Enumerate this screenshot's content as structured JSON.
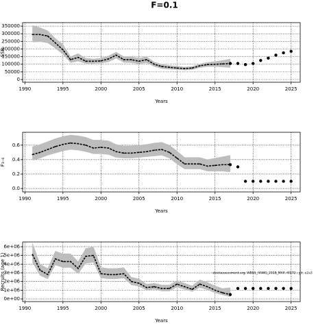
{
  "title": "F=0.1",
  "chart_data": [
    {
      "type": "line",
      "ylabel": "SSB",
      "xlabel": "Years",
      "x": [
        1991,
        1992,
        1993,
        1994,
        1995,
        1996,
        1997,
        1998,
        1999,
        2000,
        2001,
        2002,
        2003,
        2004,
        2005,
        2006,
        2007,
        2008,
        2009,
        2010,
        2011,
        2012,
        2013,
        2014,
        2015,
        2016,
        2017
      ],
      "values": [
        295000,
        295000,
        285000,
        240000,
        195000,
        130000,
        145000,
        120000,
        120000,
        122000,
        135000,
        160000,
        130000,
        130000,
        120000,
        130000,
        100000,
        85000,
        80000,
        75000,
        72000,
        75000,
        90000,
        98000,
        100000,
        102000,
        105000
      ],
      "upper": [
        355000,
        340000,
        320000,
        270000,
        230000,
        150000,
        170000,
        140000,
        135000,
        140000,
        155000,
        180000,
        150000,
        150000,
        140000,
        150000,
        115000,
        100000,
        92000,
        88000,
        82000,
        86000,
        102000,
        112000,
        118000,
        125000,
        135000
      ],
      "lower": [
        245000,
        248000,
        240000,
        205000,
        165000,
        110000,
        120000,
        105000,
        105000,
        108000,
        115000,
        140000,
        112000,
        110000,
        103000,
        110000,
        85000,
        72000,
        68000,
        65000,
        62000,
        65000,
        78000,
        85000,
        85000,
        82000,
        78000
      ],
      "projection_x": [
        2018,
        2019,
        2020,
        2021,
        2022,
        2023,
        2024,
        2025
      ],
      "projection_values": [
        105000,
        98000,
        105000,
        125000,
        140000,
        160000,
        175000,
        185000
      ],
      "xlim": [
        1989.7,
        2026.2
      ],
      "xticks": [
        1990,
        1995,
        2000,
        2005,
        2010,
        2015,
        2020,
        2025
      ],
      "ylim": [
        -18000,
        373000
      ],
      "yticks": [
        0,
        50000,
        100000,
        150000,
        200000,
        250000,
        300000,
        350000
      ],
      "grid": true,
      "color": "#000000",
      "band_color": "#bdbdbd"
    },
    {
      "type": "line",
      "ylabel": "F₃₋₆",
      "xlabel": "Years",
      "x": [
        1991,
        1992,
        1993,
        1994,
        1995,
        1996,
        1997,
        1998,
        1999,
        2000,
        2001,
        2002,
        2003,
        2004,
        2005,
        2006,
        2007,
        2008,
        2009,
        2010,
        2011,
        2012,
        2013,
        2014,
        2015,
        2016,
        2017
      ],
      "values": [
        0.47,
        0.5,
        0.54,
        0.58,
        0.61,
        0.63,
        0.62,
        0.6,
        0.56,
        0.57,
        0.56,
        0.51,
        0.49,
        0.49,
        0.5,
        0.51,
        0.53,
        0.54,
        0.5,
        0.42,
        0.34,
        0.34,
        0.34,
        0.31,
        0.32,
        0.33,
        0.33
      ],
      "upper": [
        0.58,
        0.61,
        0.65,
        0.69,
        0.72,
        0.74,
        0.73,
        0.71,
        0.67,
        0.67,
        0.66,
        0.61,
        0.59,
        0.59,
        0.6,
        0.61,
        0.63,
        0.64,
        0.6,
        0.52,
        0.43,
        0.43,
        0.43,
        0.4,
        0.42,
        0.44,
        0.46
      ],
      "lower": [
        0.39,
        0.42,
        0.46,
        0.49,
        0.52,
        0.54,
        0.53,
        0.51,
        0.48,
        0.48,
        0.47,
        0.43,
        0.42,
        0.42,
        0.43,
        0.44,
        0.45,
        0.46,
        0.42,
        0.34,
        0.27,
        0.27,
        0.27,
        0.24,
        0.24,
        0.24,
        0.23
      ],
      "projection_x": [
        2018,
        2019,
        2020,
        2021,
        2022,
        2023,
        2024,
        2025
      ],
      "projection_values": [
        0.3,
        0.1,
        0.1,
        0.1,
        0.1,
        0.1,
        0.1,
        0.1
      ],
      "xlim": [
        1989.7,
        2026.2
      ],
      "xticks": [
        1990,
        1995,
        2000,
        2005,
        2010,
        2015,
        2020,
        2025
      ],
      "ylim": [
        -0.047,
        0.778
      ],
      "yticks": [
        {
          "value": 0,
          "label": "0.0"
        },
        {
          "value": 0.2,
          "label": "0.2"
        },
        {
          "value": 0.4,
          "label": "0.4"
        },
        {
          "value": 0.6,
          "label": "0.6"
        }
      ],
      "grid": true,
      "color": "#000000",
      "band_color": "#bdbdbd"
    },
    {
      "type": "line",
      "ylabel": "Recruits (age 1)",
      "xlabel": "Years",
      "annotation": "stockassessment.org, WBSS_HAWG_2018_MAP, f0172 ; git: e2a3",
      "x": [
        1991,
        1992,
        1993,
        1994,
        1995,
        1996,
        1997,
        1998,
        1999,
        2000,
        2001,
        2002,
        2003,
        2004,
        2005,
        2006,
        2007,
        2008,
        2009,
        2010,
        2011,
        2012,
        2013,
        2014,
        2015,
        2016,
        2017
      ],
      "values": [
        5100000,
        3300000,
        2800000,
        4600000,
        4300000,
        4300000,
        3500000,
        4900000,
        5000000,
        2900000,
        2800000,
        2800000,
        2900000,
        2000000,
        1800000,
        1300000,
        1400000,
        1200000,
        1200000,
        1700000,
        1400000,
        1100000,
        1700000,
        1400000,
        1000000,
        700000,
        500000
      ],
      "upper": [
        6400000,
        4000000,
        3500000,
        5500000,
        5200000,
        5200000,
        4300000,
        5800000,
        6000000,
        3600000,
        3500000,
        3500000,
        3600000,
        2500000,
        2300000,
        1700000,
        1800000,
        1600000,
        1600000,
        2100000,
        1800000,
        1500000,
        2200000,
        1900000,
        1500000,
        1200000,
        1300000
      ],
      "lower": [
        4200000,
        2700000,
        2300000,
        3900000,
        3600000,
        3600000,
        2900000,
        4100000,
        4200000,
        2400000,
        2300000,
        2300000,
        2400000,
        1600000,
        1450000,
        1000000,
        1100000,
        900000,
        900000,
        1350000,
        1100000,
        850000,
        1300000,
        1050000,
        700000,
        450000,
        250000
      ],
      "projection_x": [
        2018,
        2019,
        2020,
        2021,
        2022,
        2023,
        2024,
        2025
      ],
      "projection_values": [
        1200000,
        1200000,
        1200000,
        1200000,
        1200000,
        1200000,
        1200000,
        1200000
      ],
      "xlim": [
        1989.7,
        2026.2
      ],
      "xticks": [
        1990,
        1995,
        2000,
        2005,
        2010,
        2015,
        2020,
        2025
      ],
      "ylim": [
        -310000,
        6550000
      ],
      "yticks": [
        {
          "value": 0,
          "label": "0e+00"
        },
        {
          "value": 1000000,
          "label": "1e+06"
        },
        {
          "value": 2000000,
          "label": "2e+06"
        },
        {
          "value": 3000000,
          "label": "3e+06"
        },
        {
          "value": 4000000,
          "label": "4e+06"
        },
        {
          "value": 5000000,
          "label": "5e+06"
        },
        {
          "value": 6000000,
          "label": "6e+06"
        }
      ],
      "grid": true,
      "color": "#000000",
      "band_color": "#bdbdbd"
    }
  ]
}
